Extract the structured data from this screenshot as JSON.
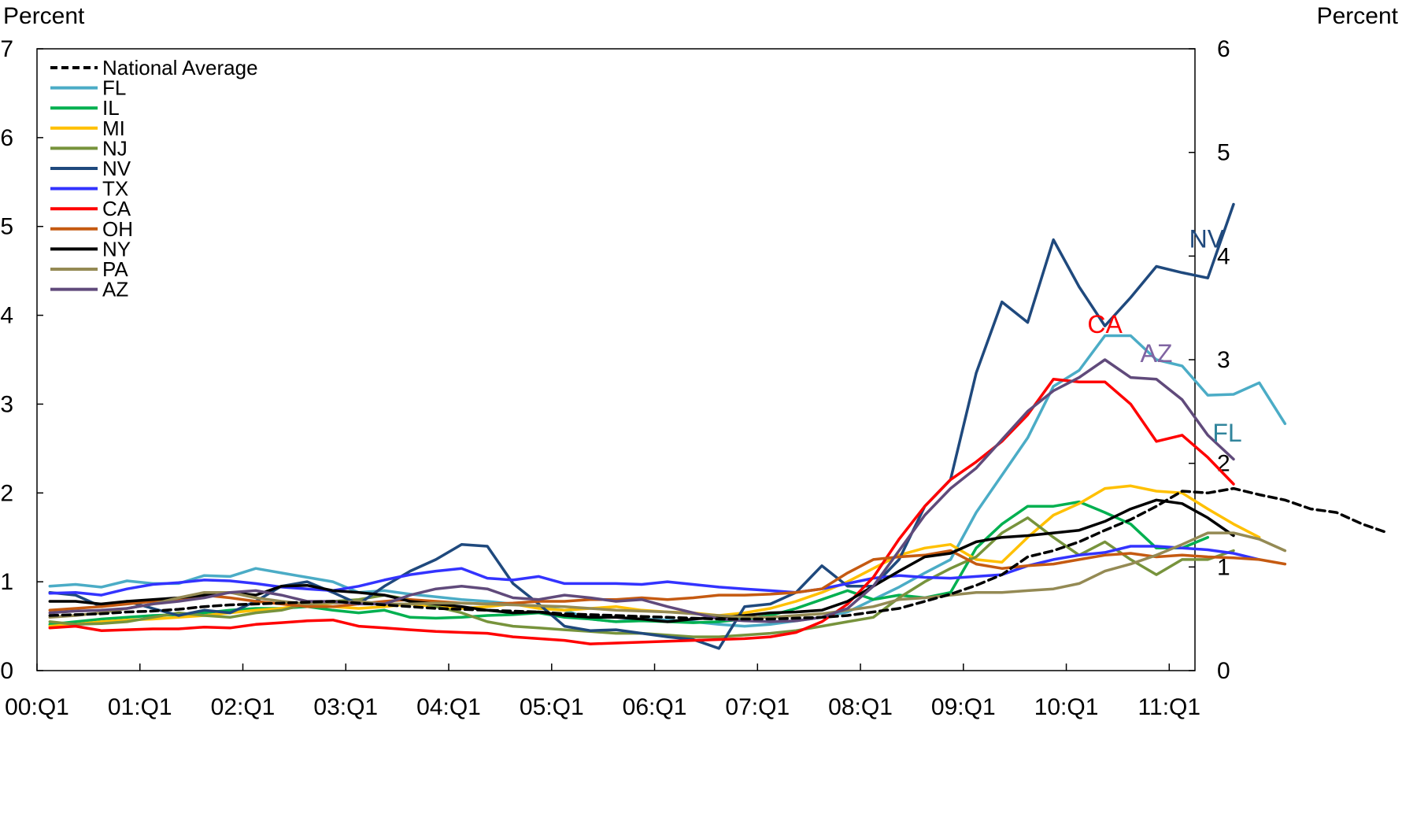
{
  "chart_data": {
    "type": "line",
    "unit_label_left": "Percent",
    "unit_label_right": "Percent",
    "ylim_left": [
      0,
      7
    ],
    "yticks_left": [
      "0",
      "1",
      "2",
      "3",
      "4",
      "5",
      "6",
      "7"
    ],
    "ylim_right": [
      0,
      6
    ],
    "yticks_right": [
      "0",
      "1",
      "2",
      "3",
      "4",
      "5",
      "6"
    ],
    "xlim": [
      2000.0,
      2011.25
    ],
    "xticks": [
      {
        "x": 2000,
        "label": "00:Q1"
      },
      {
        "x": 2001,
        "label": "01:Q1"
      },
      {
        "x": 2002,
        "label": "02:Q1"
      },
      {
        "x": 2003,
        "label": "03:Q1"
      },
      {
        "x": 2004,
        "label": "04:Q1"
      },
      {
        "x": 2005,
        "label": "05:Q1"
      },
      {
        "x": 2006,
        "label": "06:Q1"
      },
      {
        "x": 2007,
        "label": "07:Q1"
      },
      {
        "x": 2008,
        "label": "08:Q1"
      },
      {
        "x": 2009,
        "label": "09:Q1"
      },
      {
        "x": 2010,
        "label": "10:Q1"
      },
      {
        "x": 2011,
        "label": "11:Q1"
      }
    ],
    "grid": false,
    "legend_position": "top-left",
    "x_start": 2000.125,
    "x_step": 0.25,
    "series": [
      {
        "name": "National Average",
        "color": "#000000",
        "dashed": true,
        "values": [
          0.62,
          0.63,
          0.64,
          0.66,
          0.67,
          0.69,
          0.72,
          0.74,
          0.75,
          0.76,
          0.77,
          0.78,
          0.76,
          0.74,
          0.72,
          0.7,
          0.69,
          0.68,
          0.67,
          0.66,
          0.64,
          0.63,
          0.62,
          0.61,
          0.6,
          0.59,
          0.58,
          0.58,
          0.58,
          0.59,
          0.6,
          0.62,
          0.66,
          0.7,
          0.78,
          0.86,
          0.96,
          1.08,
          1.28,
          1.35,
          1.45,
          1.58,
          1.7,
          1.85,
          2.02,
          2.0,
          2.05,
          1.98,
          1.92,
          1.82,
          1.78,
          1.65,
          1.55
        ]
      },
      {
        "name": "FL",
        "color": "#4BACC6",
        "values": [
          0.95,
          0.97,
          0.94,
          1.01,
          0.98,
          0.98,
          1.07,
          1.06,
          1.15,
          1.1,
          1.05,
          1.0,
          0.88,
          0.9,
          0.86,
          0.83,
          0.8,
          0.78,
          0.75,
          0.72,
          0.68,
          0.58,
          0.55,
          0.58,
          0.57,
          0.55,
          0.52,
          0.5,
          0.52,
          0.56,
          0.6,
          0.66,
          0.8,
          0.94,
          1.1,
          1.25,
          1.78,
          2.2,
          2.62,
          3.2,
          3.38,
          3.77,
          3.77,
          3.5,
          3.43,
          3.1,
          3.11,
          3.24,
          2.78
        ]
      },
      {
        "name": "IL",
        "color": "#00B050",
        "values": [
          0.52,
          0.55,
          0.58,
          0.6,
          0.62,
          0.63,
          0.65,
          0.68,
          0.7,
          0.7,
          0.72,
          0.68,
          0.65,
          0.68,
          0.6,
          0.59,
          0.6,
          0.62,
          0.63,
          0.65,
          0.6,
          0.58,
          0.55,
          0.56,
          0.55,
          0.54,
          0.55,
          0.58,
          0.62,
          0.7,
          0.8,
          0.9,
          0.8,
          0.85,
          0.82,
          0.88,
          1.38,
          1.65,
          1.85,
          1.85,
          1.9,
          1.78,
          1.65,
          1.38,
          1.38,
          1.5
        ]
      },
      {
        "name": "MI",
        "color": "#FFC000",
        "values": [
          0.5,
          0.52,
          0.55,
          0.57,
          0.58,
          0.6,
          0.62,
          0.65,
          0.68,
          0.7,
          0.75,
          0.72,
          0.7,
          0.72,
          0.75,
          0.72,
          0.7,
          0.72,
          0.75,
          0.7,
          0.68,
          0.7,
          0.72,
          0.68,
          0.66,
          0.65,
          0.62,
          0.65,
          0.7,
          0.78,
          0.88,
          1.0,
          1.15,
          1.3,
          1.38,
          1.42,
          1.25,
          1.22,
          1.5,
          1.75,
          1.88,
          2.05,
          2.08,
          2.02,
          2.0,
          1.82,
          1.65,
          1.5
        ]
      },
      {
        "name": "NJ",
        "color": "#77933C",
        "values": [
          0.55,
          0.52,
          0.53,
          0.55,
          0.6,
          0.65,
          0.62,
          0.6,
          0.65,
          0.68,
          0.75,
          0.78,
          0.8,
          0.85,
          0.8,
          0.72,
          0.65,
          0.55,
          0.5,
          0.48,
          0.46,
          0.44,
          0.42,
          0.42,
          0.4,
          0.38,
          0.38,
          0.4,
          0.42,
          0.45,
          0.5,
          0.55,
          0.6,
          0.82,
          1.0,
          1.15,
          1.28,
          1.55,
          1.72,
          1.5,
          1.3,
          1.45,
          1.25,
          1.08,
          1.25,
          1.25,
          1.35
        ]
      },
      {
        "name": "NV",
        "color": "#1F497D",
        "values": [
          0.88,
          0.85,
          0.72,
          0.78,
          0.7,
          0.62,
          0.68,
          0.65,
          0.78,
          0.95,
          1.0,
          0.88,
          0.75,
          0.95,
          1.12,
          1.25,
          1.42,
          1.4,
          0.98,
          0.75,
          0.5,
          0.45,
          0.46,
          0.42,
          0.38,
          0.35,
          0.25,
          0.72,
          0.75,
          0.88,
          1.18,
          0.95,
          0.95,
          1.25,
          1.85,
          2.15,
          3.35,
          4.15,
          3.92,
          4.85,
          4.32,
          3.88,
          4.2,
          4.55,
          4.48,
          4.42,
          5.25
        ]
      },
      {
        "name": "TX",
        "color": "#3333FF",
        "values": [
          0.87,
          0.88,
          0.85,
          0.92,
          0.97,
          0.99,
          1.02,
          1.01,
          0.98,
          0.94,
          0.92,
          0.9,
          0.95,
          1.02,
          1.08,
          1.12,
          1.15,
          1.04,
          1.02,
          1.06,
          0.98,
          0.98,
          0.98,
          0.97,
          1.0,
          0.97,
          0.94,
          0.92,
          0.9,
          0.88,
          0.92,
          0.98,
          1.04,
          1.07,
          1.05,
          1.04,
          1.06,
          1.08,
          1.18,
          1.25,
          1.3,
          1.33,
          1.4,
          1.4,
          1.38,
          1.36,
          1.32,
          1.25
        ]
      },
      {
        "name": "CA",
        "color": "#FF0000",
        "values": [
          0.48,
          0.5,
          0.45,
          0.46,
          0.47,
          0.47,
          0.49,
          0.48,
          0.52,
          0.54,
          0.56,
          0.57,
          0.5,
          0.48,
          0.46,
          0.44,
          0.43,
          0.42,
          0.38,
          0.36,
          0.34,
          0.3,
          0.31,
          0.32,
          0.33,
          0.34,
          0.35,
          0.36,
          0.38,
          0.43,
          0.55,
          0.75,
          1.05,
          1.48,
          1.85,
          2.15,
          2.35,
          2.58,
          2.88,
          3.28,
          3.25,
          3.25,
          3.0,
          2.58,
          2.65,
          2.4,
          2.1
        ]
      },
      {
        "name": "OH",
        "color": "#C55A11",
        "values": [
          0.68,
          0.7,
          0.72,
          0.75,
          0.78,
          0.8,
          0.85,
          0.82,
          0.78,
          0.75,
          0.72,
          0.72,
          0.75,
          0.78,
          0.8,
          0.78,
          0.76,
          0.75,
          0.76,
          0.78,
          0.78,
          0.8,
          0.8,
          0.82,
          0.8,
          0.82,
          0.85,
          0.85,
          0.86,
          0.88,
          0.92,
          1.1,
          1.25,
          1.28,
          1.3,
          1.35,
          1.2,
          1.15,
          1.18,
          1.2,
          1.25,
          1.3,
          1.32,
          1.28,
          1.3,
          1.28,
          1.27,
          1.25,
          1.2
        ]
      },
      {
        "name": "NY",
        "color": "#000000",
        "values": [
          0.78,
          0.78,
          0.75,
          0.78,
          0.8,
          0.82,
          0.85,
          0.88,
          0.85,
          0.95,
          0.96,
          0.9,
          0.88,
          0.85,
          0.78,
          0.75,
          0.72,
          0.68,
          0.65,
          0.66,
          0.62,
          0.6,
          0.6,
          0.58,
          0.55,
          0.58,
          0.6,
          0.62,
          0.65,
          0.66,
          0.68,
          0.78,
          0.95,
          1.12,
          1.28,
          1.32,
          1.45,
          1.5,
          1.52,
          1.55,
          1.58,
          1.68,
          1.82,
          1.92,
          1.88,
          1.72,
          1.52
        ]
      },
      {
        "name": "PA",
        "color": "#948A54",
        "values": [
          0.6,
          0.62,
          0.65,
          0.7,
          0.75,
          0.82,
          0.88,
          0.88,
          0.82,
          0.78,
          0.75,
          0.76,
          0.78,
          0.75,
          0.75,
          0.76,
          0.76,
          0.75,
          0.74,
          0.73,
          0.72,
          0.7,
          0.68,
          0.67,
          0.66,
          0.64,
          0.62,
          0.6,
          0.6,
          0.62,
          0.64,
          0.68,
          0.72,
          0.8,
          0.82,
          0.85,
          0.88,
          0.88,
          0.9,
          0.92,
          0.98,
          1.12,
          1.2,
          1.3,
          1.42,
          1.55,
          1.55,
          1.48,
          1.35
        ]
      },
      {
        "name": "AZ",
        "color": "#604A7B",
        "values": [
          0.65,
          0.67,
          0.68,
          0.7,
          0.75,
          0.78,
          0.82,
          0.88,
          0.9,
          0.85,
          0.78,
          0.78,
          0.75,
          0.75,
          0.85,
          0.92,
          0.95,
          0.92,
          0.82,
          0.8,
          0.85,
          0.82,
          0.78,
          0.8,
          0.72,
          0.65,
          0.58,
          0.56,
          0.55,
          0.56,
          0.6,
          0.7,
          0.95,
          1.35,
          1.75,
          2.05,
          2.28,
          2.6,
          2.92,
          3.15,
          3.3,
          3.5,
          3.3,
          3.28,
          3.05,
          2.65,
          2.38
        ]
      }
    ],
    "annotations": [
      {
        "text": "NV",
        "series": "NV",
        "color": "#1F497D"
      },
      {
        "text": "AZ",
        "series": "AZ",
        "color": "#8064A2"
      },
      {
        "text": "CA",
        "series": "CA",
        "color": "#FF0000"
      },
      {
        "text": "FL",
        "series": "FL",
        "color": "#31859C"
      }
    ]
  }
}
